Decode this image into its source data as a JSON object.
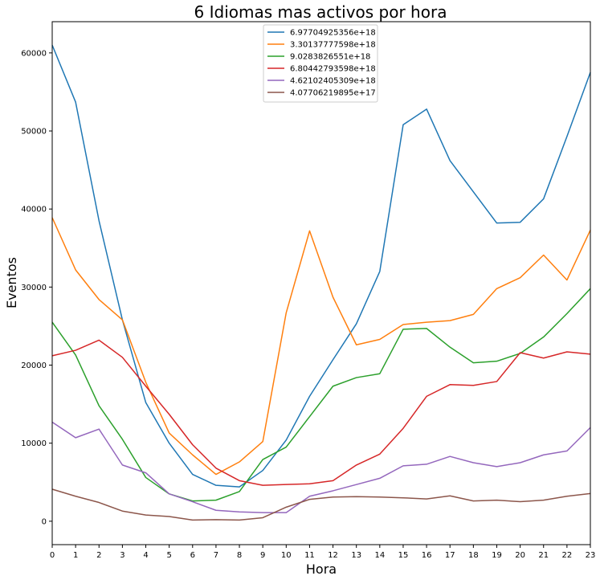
{
  "chart_data": {
    "type": "line",
    "title": "6 Idiomas mas activos por hora",
    "xlabel": "Hora",
    "ylabel": "Eventos",
    "xlim": [
      0,
      23
    ],
    "ylim": [
      -3000,
      64000
    ],
    "x_ticks": [
      0,
      1,
      2,
      3,
      4,
      5,
      6,
      7,
      8,
      9,
      10,
      11,
      12,
      13,
      14,
      15,
      16,
      17,
      18,
      19,
      20,
      21,
      22,
      23
    ],
    "y_ticks": [
      0,
      10000,
      20000,
      30000,
      40000,
      50000,
      60000
    ],
    "grid": false,
    "legend_position": "top-center",
    "x": [
      0,
      1,
      2,
      3,
      4,
      5,
      6,
      7,
      8,
      9,
      10,
      11,
      12,
      13,
      14,
      15,
      16,
      17,
      18,
      19,
      20,
      21,
      22,
      23
    ],
    "series": [
      {
        "name": "6.97704925356e+18",
        "color": "#1f77b4",
        "values": [
          61000,
          53700,
          38500,
          25800,
          15200,
          10000,
          6000,
          4600,
          4400,
          6500,
          10400,
          16000,
          20700,
          25300,
          32000,
          50800,
          52800,
          46200,
          42200,
          38200,
          38300,
          41300,
          49300,
          57500
        ]
      },
      {
        "name": "3.30137777598e+18",
        "color": "#ff7f0e",
        "values": [
          38900,
          32200,
          28400,
          25800,
          17800,
          11300,
          8500,
          6000,
          7600,
          10200,
          26700,
          37200,
          28700,
          22600,
          23300,
          25200,
          25500,
          25700,
          26500,
          29800,
          31200,
          34100,
          30900,
          37300
        ]
      },
      {
        "name": "9.0283826551e+18",
        "color": "#2ca02c",
        "values": [
          25500,
          21300,
          14800,
          10500,
          5600,
          3500,
          2600,
          2700,
          3800,
          7900,
          9500,
          13400,
          17300,
          18400,
          18900,
          24600,
          24700,
          22300,
          20300,
          20500,
          21500,
          23600,
          26600,
          29800
        ]
      },
      {
        "name": "6.80442793598e+18",
        "color": "#d62728",
        "values": [
          21200,
          21900,
          23200,
          21000,
          17300,
          13700,
          9800,
          6800,
          5200,
          4600,
          4700,
          4800,
          5200,
          7200,
          8600,
          11900,
          16000,
          17500,
          17400,
          17900,
          21600,
          20900,
          21700,
          21400
        ]
      },
      {
        "name": "4.62102405309e+18",
        "color": "#9467bd",
        "values": [
          12700,
          10700,
          11800,
          7200,
          6200,
          3500,
          2500,
          1400,
          1200,
          1100,
          1100,
          3200,
          3900,
          4700,
          5500,
          7100,
          7300,
          8300,
          7500,
          7000,
          7500,
          8500,
          9000,
          12000
        ]
      },
      {
        "name": "4.07706219895e+17",
        "color": "#8c564b",
        "values": [
          4100,
          3200,
          2400,
          1300,
          800,
          600,
          150,
          200,
          150,
          450,
          1800,
          2800,
          3100,
          3150,
          3100,
          3000,
          2850,
          3250,
          2600,
          2700,
          2500,
          2700,
          3200,
          3550
        ]
      }
    ]
  }
}
